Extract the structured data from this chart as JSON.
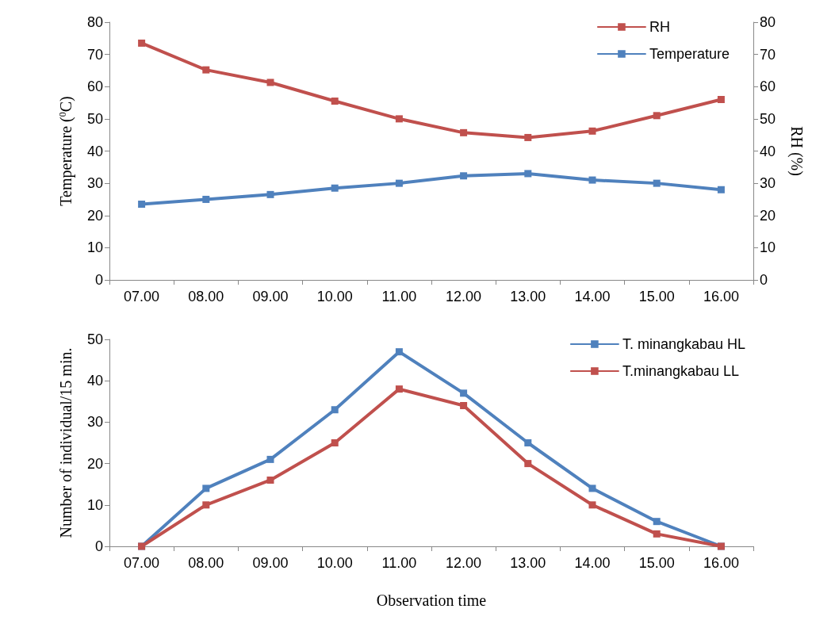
{
  "chart_data": [
    {
      "type": "line",
      "ylabel": "Temperature ($^{0}$C)",
      "y2label": "RH (%)",
      "categories": [
        "07.00",
        "08.00",
        "09.00",
        "10.00",
        "11.00",
        "12.00",
        "13.00",
        "14.00",
        "15.00",
        "16.00"
      ],
      "series": [
        {
          "name": "RH",
          "color": "#c0504d",
          "axis": "y2",
          "values": [
            73.5,
            65.2,
            61.3,
            55.5,
            50,
            45.7,
            44.2,
            46.2,
            51,
            56
          ]
        },
        {
          "name": "Temperature",
          "color": "#4f81bd",
          "values": [
            23.5,
            25,
            26.5,
            28.5,
            30,
            32.3,
            33,
            31,
            30,
            28
          ]
        }
      ],
      "ylim": [
        0,
        80
      ],
      "yticks": [
        0,
        10,
        20,
        30,
        40,
        50,
        60,
        70,
        80
      ],
      "y2lim": [
        0,
        80
      ],
      "y2ticks": [
        0,
        10,
        20,
        30,
        40,
        50,
        60,
        70,
        80
      ],
      "grid": false,
      "legend": "top right",
      "marker": "square",
      "line_style": "solid"
    },
    {
      "type": "line",
      "xlabel": "Observation time",
      "ylabel": "Number of individual/15 min.",
      "categories": [
        "07.00",
        "08.00",
        "09.00",
        "10.00",
        "11.00",
        "12.00",
        "13.00",
        "14.00",
        "15.00",
        "16.00"
      ],
      "series": [
        {
          "name": "T. minangkabau HL",
          "color": "#4f81bd",
          "values": [
            0,
            14,
            21,
            33,
            47,
            37,
            25,
            14,
            6,
            0
          ]
        },
        {
          "name": "T.minangkabau LL",
          "color": "#c0504d",
          "values": [
            0,
            10,
            16,
            25,
            38,
            34,
            20,
            10,
            3,
            0
          ]
        }
      ],
      "ylim": [
        0,
        50
      ],
      "yticks": [
        0,
        10,
        20,
        30,
        40,
        50
      ],
      "grid": false,
      "legend": "top right",
      "marker": "square",
      "line_style": "solid"
    }
  ]
}
